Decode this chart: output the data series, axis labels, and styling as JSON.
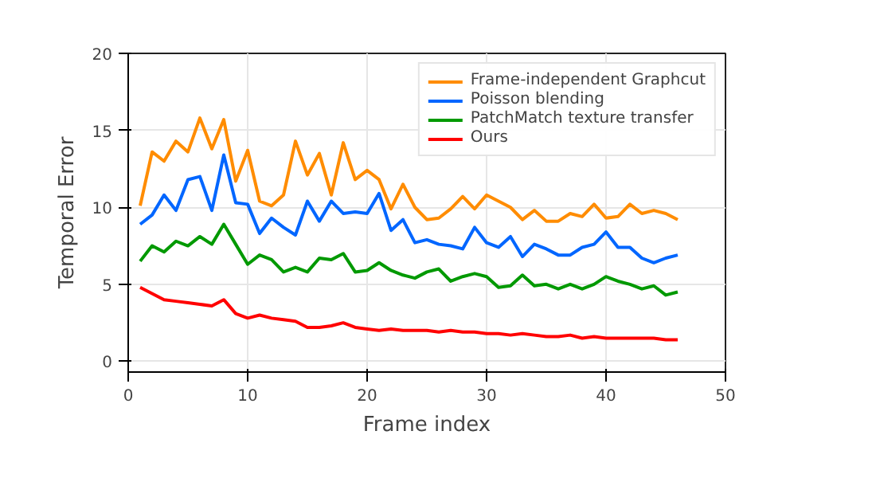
{
  "chart_data": {
    "type": "line",
    "xlabel": "Frame index",
    "ylabel": "Temporal Error",
    "x": [
      1,
      2,
      3,
      4,
      5,
      6,
      7,
      8,
      9,
      10,
      11,
      12,
      13,
      14,
      15,
      16,
      17,
      18,
      19,
      20,
      21,
      22,
      23,
      24,
      25,
      26,
      27,
      28,
      29,
      30,
      31,
      32,
      33,
      34,
      35,
      36,
      37,
      38,
      39,
      40,
      41,
      42,
      43,
      44,
      45,
      46
    ],
    "series": [
      {
        "name": "Frame-independent Graphcut",
        "color": "#ff8c00",
        "values": [
          10.1,
          13.6,
          13.0,
          14.3,
          13.6,
          15.8,
          13.8,
          15.7,
          11.7,
          13.7,
          10.4,
          10.1,
          10.8,
          14.3,
          12.1,
          13.5,
          10.8,
          14.2,
          11.8,
          12.4,
          11.8,
          9.9,
          11.5,
          10.0,
          9.2,
          9.3,
          9.9,
          10.7,
          9.9,
          10.8,
          10.4,
          10.0,
          9.2,
          9.8,
          9.1,
          9.1,
          9.6,
          9.4,
          10.2,
          9.3,
          9.4,
          10.2,
          9.6,
          9.8,
          9.6,
          9.2
        ]
      },
      {
        "name": "Poisson blending",
        "color": "#0066ff",
        "values": [
          8.9,
          9.5,
          10.8,
          9.8,
          11.8,
          12.0,
          9.8,
          13.4,
          10.3,
          10.2,
          8.3,
          9.3,
          8.7,
          8.2,
          10.4,
          9.1,
          10.4,
          9.6,
          9.7,
          9.6,
          10.9,
          8.5,
          9.2,
          7.7,
          7.9,
          7.6,
          7.5,
          7.3,
          8.7,
          7.7,
          7.4,
          8.1,
          6.8,
          7.6,
          7.3,
          6.9,
          6.9,
          7.4,
          7.6,
          8.4,
          7.4,
          7.4,
          6.7,
          6.4,
          6.7,
          6.9
        ]
      },
      {
        "name": "PatchMatch texture transfer",
        "color": "#009900",
        "values": [
          6.5,
          7.5,
          7.1,
          7.8,
          7.5,
          8.1,
          7.6,
          8.9,
          7.6,
          6.3,
          6.9,
          6.6,
          5.8,
          6.1,
          5.8,
          6.7,
          6.6,
          7.0,
          5.8,
          5.9,
          6.4,
          5.9,
          5.6,
          5.4,
          5.8,
          6.0,
          5.2,
          5.5,
          5.7,
          5.5,
          4.8,
          4.9,
          5.6,
          4.9,
          5.0,
          4.7,
          5.0,
          4.7,
          5.0,
          5.5,
          5.2,
          5.0,
          4.7,
          4.9,
          4.3,
          4.5
        ]
      },
      {
        "name": "Ours",
        "color": "#ff0000",
        "values": [
          4.8,
          4.4,
          4.0,
          3.9,
          3.8,
          3.7,
          3.6,
          4.0,
          3.1,
          2.8,
          3.0,
          2.8,
          2.7,
          2.6,
          2.2,
          2.2,
          2.3,
          2.5,
          2.2,
          2.1,
          2.0,
          2.1,
          2.0,
          2.0,
          2.0,
          1.9,
          2.0,
          1.9,
          1.9,
          1.8,
          1.8,
          1.7,
          1.8,
          1.7,
          1.6,
          1.6,
          1.7,
          1.5,
          1.6,
          1.5,
          1.5,
          1.5,
          1.5,
          1.5,
          1.4,
          1.4
        ]
      }
    ],
    "xlim": [
      0,
      50
    ],
    "ylim": [
      -0.7,
      20
    ],
    "xticks": [
      0,
      10,
      20,
      30,
      40,
      50
    ],
    "yticks": [
      0,
      5,
      10,
      15,
      20
    ],
    "grid": true,
    "legend": "top right",
    "marker": "none",
    "line_style": "solid"
  }
}
